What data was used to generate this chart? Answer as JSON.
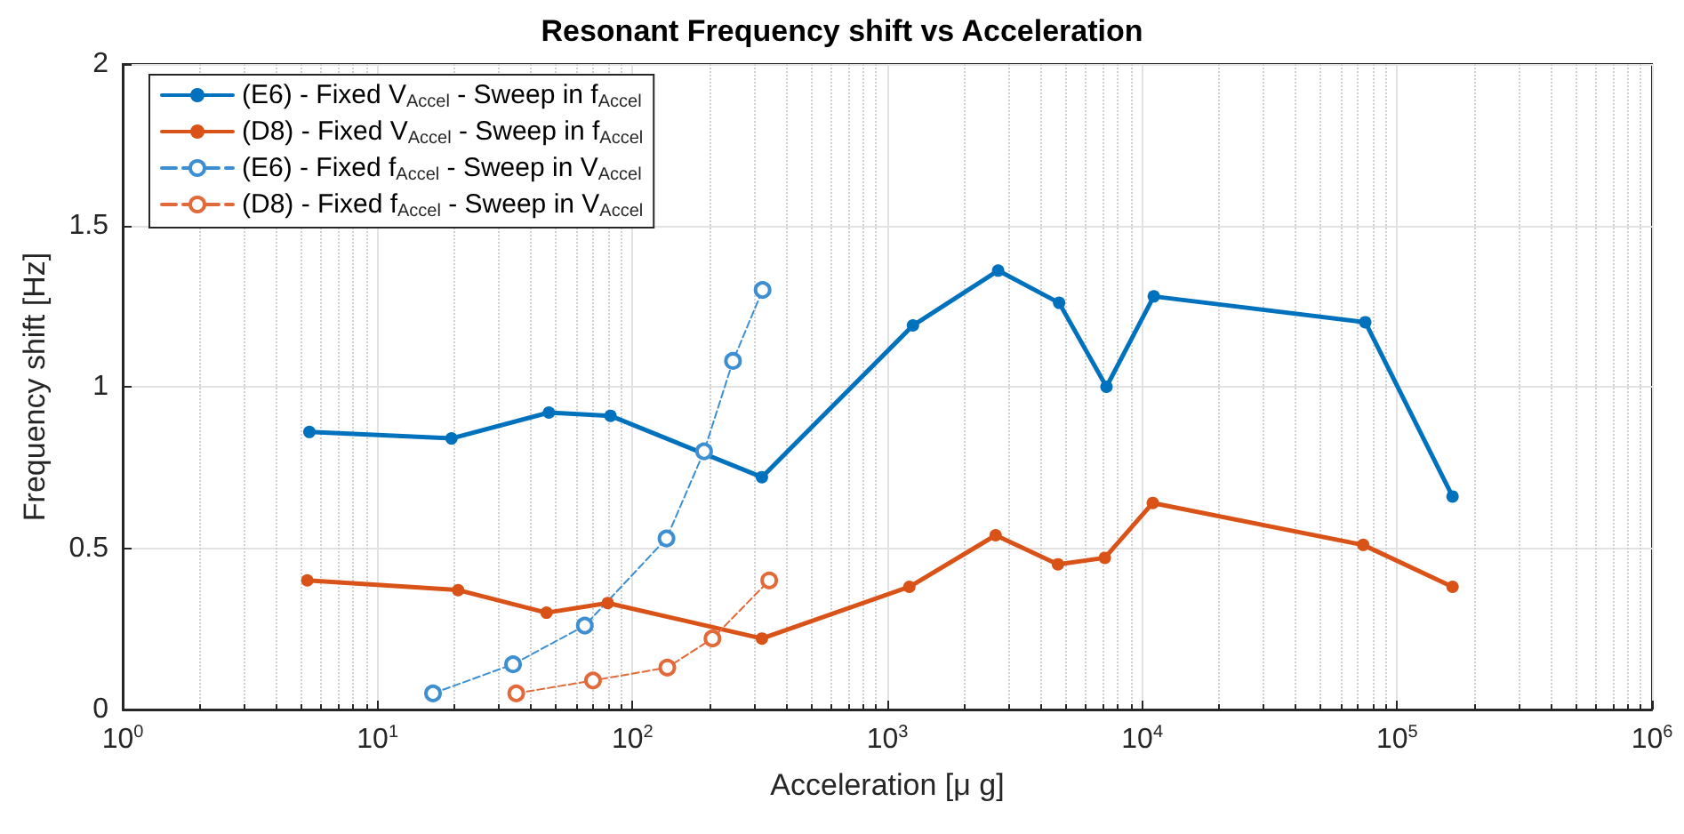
{
  "chart_data": {
    "type": "line",
    "title": "Resonant Frequency shift vs Acceleration",
    "xlabel": "Acceleration [μ g]",
    "ylabel": "Frequency shift [Hz]",
    "log": "x",
    "grid": true,
    "legend": "top left",
    "marker": "circle",
    "xlim": [
      1,
      1000000
    ],
    "xticks": [
      {
        "value": 1,
        "label": "10$^{0}$"
      },
      {
        "value": 10,
        "label": "10$^{1}$"
      },
      {
        "value": 100,
        "label": "10$^{2}$"
      },
      {
        "value": 1000,
        "label": "10$^{3}$"
      },
      {
        "value": 10000,
        "label": "10$^{4}$"
      },
      {
        "value": 100000,
        "label": "10$^{5}$"
      },
      {
        "value": 1000000,
        "label": "10$^{6}$"
      }
    ],
    "ylim": [
      0,
      2
    ],
    "yticks": [
      0,
      0.5,
      1,
      1.5,
      2
    ],
    "series": [
      {
        "name": "(E6) - Fixed V$_{Accel}$ - Sweep in f$_{Accel}$",
        "color": "#0072bd",
        "line_style": "solid",
        "x": [
          5.4,
          19.5,
          47,
          82,
          322,
          1260,
          2720,
          4720,
          7240,
          11100,
          75000,
          165000
        ],
        "values": [
          0.86,
          0.84,
          0.92,
          0.91,
          0.72,
          1.19,
          1.36,
          1.26,
          1.0,
          1.28,
          1.2,
          0.66
        ]
      },
      {
        "name": "(D8) - Fixed V$_{Accel}$ - Sweep in f$_{Accel}$",
        "color": "#d95319",
        "line_style": "solid",
        "x": [
          5.3,
          20.7,
          46,
          80,
          322,
          1220,
          2660,
          4670,
          7130,
          11000,
          73600,
          165000
        ],
        "values": [
          0.4,
          0.37,
          0.3,
          0.33,
          0.22,
          0.38,
          0.54,
          0.45,
          0.47,
          0.64,
          0.51,
          0.38
        ]
      },
      {
        "name": "(E6) - Fixed f$_{Accel}$ - Sweep in V$_{Accel}$",
        "color": "#3d8fd1",
        "line_style": "dashed",
        "x": [
          16.5,
          34,
          65,
          136,
          191,
          248,
          324
        ],
        "values": [
          0.05,
          0.14,
          0.26,
          0.53,
          0.8,
          1.08,
          1.3
        ]
      },
      {
        "name": "(D8) - Fixed f$_{Accel}$ - Sweep in V$_{Accel}$",
        "color": "#e2693a",
        "line_style": "dashed",
        "x": [
          35,
          70,
          137,
          206,
          344
        ],
        "values": [
          0.05,
          0.09,
          0.13,
          0.22,
          0.4
        ]
      }
    ]
  }
}
